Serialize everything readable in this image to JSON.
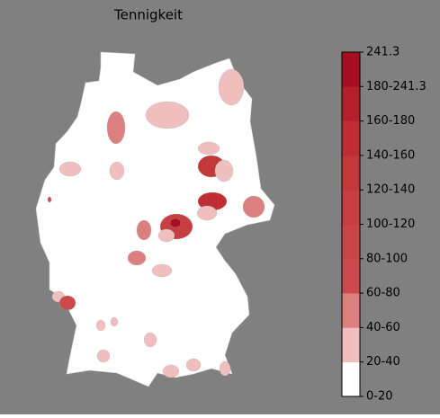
{
  "chart_data": {
    "type": "choropleth",
    "title": "Tennigkeit",
    "background": "#808080",
    "land_color": "#ffffff",
    "colorbar": {
      "labels": [
        "0-20",
        "20-40",
        "40-60",
        "60-80",
        "80-100",
        "100-120",
        "120-140",
        "140-160",
        "160-180",
        "180-241.3",
        "241.3"
      ],
      "colors": [
        "#ffffff",
        "#efbfbf",
        "#dc7f80",
        "#cc4a4d",
        "#c84446",
        "#c53e41",
        "#c2383b",
        "#bd2d33",
        "#b31f2b",
        "#a50f20"
      ]
    },
    "regions": [
      {
        "color": "#efbfbf"
      },
      {
        "color": "#dc7f80"
      },
      {
        "color": "#efbfbf"
      },
      {
        "color": "#efbfbf"
      },
      {
        "color": "#efbfbf"
      },
      {
        "color": "#efbfbf"
      },
      {
        "color": "#c2383b"
      },
      {
        "color": "#efbfbf"
      },
      {
        "color": "#bd2d33"
      },
      {
        "color": "#dc7f80"
      },
      {
        "color": "#efbfbf"
      },
      {
        "color": "#c53e41"
      },
      {
        "color": "#a50f20"
      },
      {
        "color": "#dc7f80"
      },
      {
        "color": "#efbfbf"
      },
      {
        "color": "#dc7f80"
      },
      {
        "color": "#efbfbf"
      },
      {
        "color": "#efbfbf"
      },
      {
        "color": "#cc4a4d"
      },
      {
        "color": "#efbfbf"
      },
      {
        "color": "#efbfbf"
      },
      {
        "color": "#efbfbf"
      },
      {
        "color": "#efbfbf"
      },
      {
        "color": "#efbfbf"
      },
      {
        "color": "#efbfbf"
      },
      {
        "color": "#efbfbf"
      },
      {
        "color": "#cc4a4d"
      }
    ]
  }
}
